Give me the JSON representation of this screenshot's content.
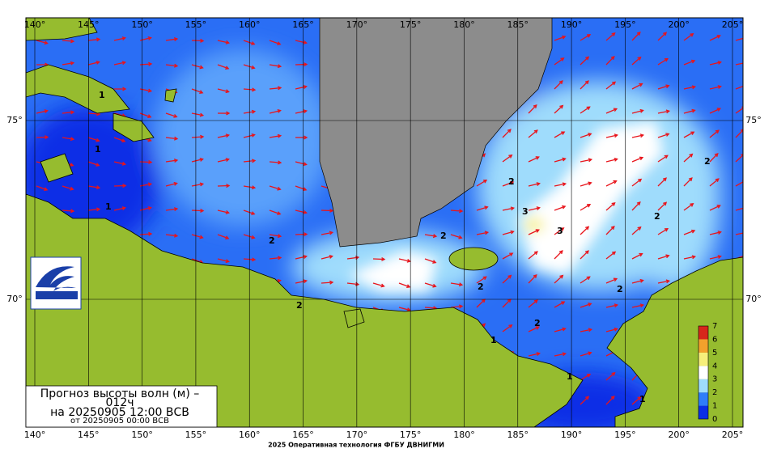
{
  "map": {
    "lon_labels": [
      "140°",
      "145°",
      "150°",
      "155°",
      "160°",
      "165°",
      "170°",
      "175°",
      "180°",
      "185°",
      "190°",
      "195°",
      "200°",
      "205°"
    ],
    "lat_labels": [
      "75°",
      "70°"
    ],
    "contour_labels": [
      "1",
      "2",
      "3"
    ]
  },
  "legend": {
    "ticks": [
      "0",
      "1",
      "2",
      "3",
      "4",
      "5",
      "6",
      "7"
    ],
    "colors": [
      "#0a2ee6",
      "#2f7dfa",
      "#9fdcfc",
      "#ffffff",
      "#f6ef7a",
      "#f3a12c",
      "#d7261b"
    ]
  },
  "title": {
    "line1": "Прогноз высоты волн (м) –",
    "line2": "012ч",
    "line3": "на 20250905 12:00 ВСВ",
    "line4": "от 20250905 00:00 ВСВ"
  },
  "logo": "ДВНИГМИ",
  "footer": "2025 Оперативная технология ФГБУ ДВНИГМИ"
}
